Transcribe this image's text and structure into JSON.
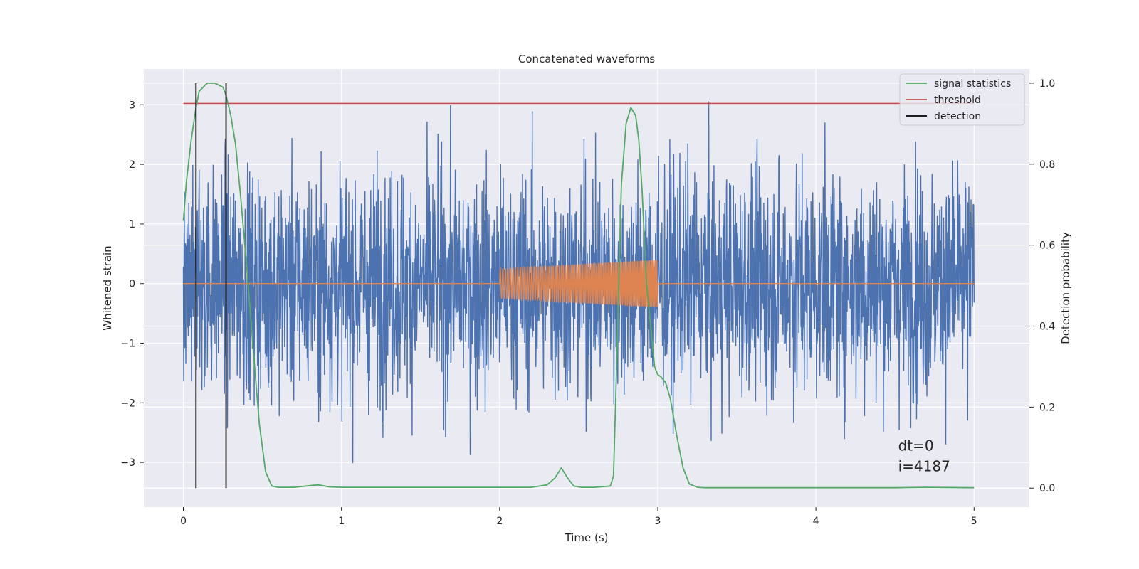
{
  "chart_data": {
    "type": "line",
    "title": "Concatenated waveforms",
    "xlabel": "Time (s)",
    "ylabel_left": "Whitened strain",
    "ylabel_right": "Detection probability",
    "xlim": [
      -0.25,
      5.35
    ],
    "ylim_left": [
      -3.75,
      3.6
    ],
    "ylim_right": [
      -0.047,
      1.035
    ],
    "x_ticks": [
      0,
      1,
      2,
      3,
      4,
      5
    ],
    "x_tick_labels": [
      "0",
      "1",
      "2",
      "3",
      "4",
      "5"
    ],
    "y_left_ticks": [
      -3,
      -2,
      -1,
      0,
      1,
      2,
      3
    ],
    "y_left_tick_labels": [
      "−3",
      "−2",
      "−1",
      "0",
      "1",
      "2",
      "3"
    ],
    "y_right_ticks": [
      0.0,
      0.2,
      0.4,
      0.6,
      0.8,
      1.0
    ],
    "y_right_tick_labels": [
      "0.0",
      "0.2",
      "0.4",
      "0.6",
      "0.8",
      "1.0"
    ],
    "grid": true,
    "legend_position": "top-right",
    "legend": [
      {
        "label": "signal statistics",
        "color": "#55a868"
      },
      {
        "label": "threshold",
        "color": "#c44e52"
      },
      {
        "label": "detection",
        "color": "#000000"
      }
    ],
    "series": [
      {
        "role": "whitened strain (noise)",
        "color": "#4c72b0",
        "axis": "left",
        "x_range": [
          0,
          5
        ],
        "approx_envelope": [
          -3.2,
          3.3
        ]
      },
      {
        "role": "injected chirp waveform",
        "color": "#dd8452",
        "axis": "left",
        "x_range": [
          0,
          5
        ],
        "nonzero_range": [
          2.0,
          3.0
        ],
        "amplitude_start": 0.25,
        "amplitude_end": 0.4
      },
      {
        "name": "signal statistics",
        "color": "#55a868",
        "axis": "right",
        "x": [
          0.0,
          0.02,
          0.05,
          0.08,
          0.1,
          0.15,
          0.2,
          0.25,
          0.27,
          0.3,
          0.33,
          0.36,
          0.4,
          0.44,
          0.48,
          0.52,
          0.56,
          0.6,
          0.7,
          0.8,
          0.85,
          0.88,
          0.92,
          1.0,
          1.5,
          2.0,
          2.2,
          2.3,
          2.35,
          2.39,
          2.43,
          2.47,
          2.52,
          2.6,
          2.7,
          2.72,
          2.74,
          2.77,
          2.8,
          2.83,
          2.86,
          2.88,
          2.9,
          2.93,
          2.95,
          2.98,
          3.0,
          3.02,
          3.05,
          3.08,
          3.12,
          3.16,
          3.2,
          3.25,
          3.3,
          3.5,
          4.0,
          4.5,
          4.7,
          5.0
        ],
        "y": [
          0.66,
          0.76,
          0.86,
          0.94,
          0.98,
          1.0,
          1.0,
          0.99,
          0.97,
          0.92,
          0.85,
          0.73,
          0.55,
          0.35,
          0.16,
          0.04,
          0.005,
          0.002,
          0.002,
          0.006,
          0.008,
          0.006,
          0.003,
          0.002,
          0.002,
          0.002,
          0.002,
          0.008,
          0.025,
          0.05,
          0.025,
          0.005,
          0.002,
          0.002,
          0.005,
          0.03,
          0.3,
          0.75,
          0.9,
          0.94,
          0.92,
          0.86,
          0.74,
          0.5,
          0.42,
          0.3,
          0.28,
          0.275,
          0.26,
          0.22,
          0.13,
          0.05,
          0.01,
          0.002,
          0.001,
          0.001,
          0.001,
          0.001,
          0.002,
          0.001
        ]
      },
      {
        "name": "threshold",
        "color": "#c44e52",
        "axis": "right",
        "x": [
          0,
          5
        ],
        "y": [
          0.95,
          0.95
        ]
      }
    ],
    "detections_x": [
      0.08,
      0.27
    ],
    "annotation": {
      "lines": [
        "dt=0",
        "i=4187"
      ],
      "x": 4.52,
      "y_left": -2.8
    }
  }
}
